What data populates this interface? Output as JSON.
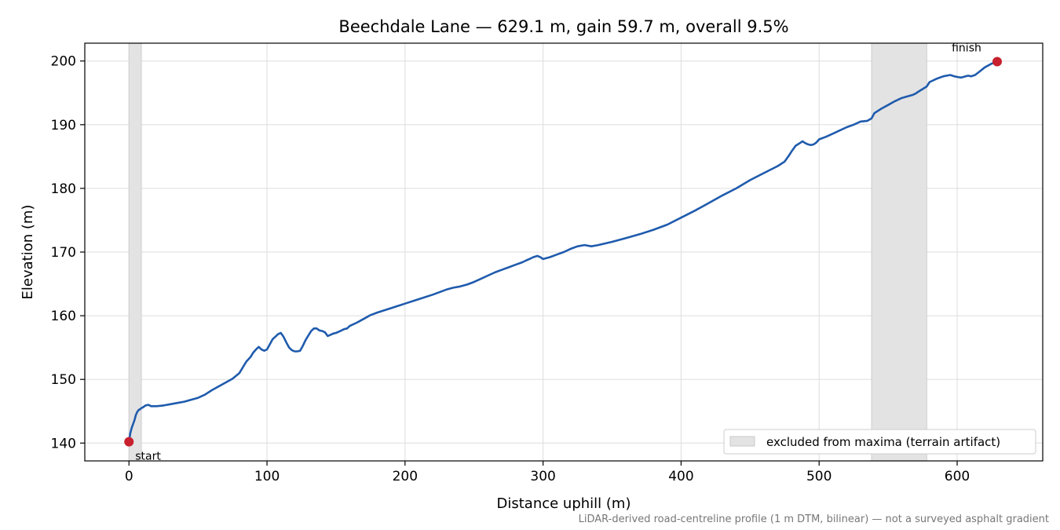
{
  "chart_data": {
    "type": "line",
    "title": "Beechdale Lane — 629.1 m, gain 59.7 m, overall 9.5%",
    "xlabel": "Distance uphill (m)",
    "ylabel": "Elevation (m)",
    "xlim": [
      -32,
      662
    ],
    "ylim": [
      137.2,
      202.8
    ],
    "xticks": [
      0,
      100,
      200,
      300,
      400,
      500,
      600
    ],
    "yticks": [
      140,
      150,
      160,
      170,
      180,
      190,
      200
    ],
    "grid": true,
    "series": [
      {
        "color": "#1f5bad",
        "x": [
          0,
          1,
          2,
          3,
          4,
          5,
          6,
          7,
          8,
          9,
          10,
          12,
          14,
          16,
          20,
          25,
          30,
          35,
          40,
          45,
          50,
          55,
          60,
          65,
          70,
          75,
          80,
          85,
          88,
          90,
          92,
          94,
          96,
          98,
          100,
          102,
          104,
          106,
          108,
          110,
          112,
          114,
          116,
          118,
          120,
          122,
          124,
          126,
          128,
          130,
          132,
          134,
          136,
          138,
          140,
          142,
          144,
          146,
          148,
          150,
          152,
          154,
          156,
          158,
          160,
          165,
          170,
          175,
          180,
          190,
          200,
          210,
          220,
          230,
          235,
          240,
          245,
          250,
          255,
          260,
          265,
          270,
          275,
          280,
          285,
          288,
          290,
          293,
          296,
          298,
          300,
          305,
          310,
          315,
          320,
          325,
          330,
          335,
          340,
          350,
          360,
          370,
          380,
          390,
          400,
          410,
          420,
          430,
          440,
          450,
          460,
          470,
          475,
          478,
          480,
          483,
          486,
          488,
          490,
          492,
          494,
          496,
          498,
          500,
          505,
          510,
          515,
          520,
          525,
          530,
          535,
          538,
          540,
          545,
          550,
          555,
          560,
          565,
          568,
          570,
          572,
          575,
          578,
          580,
          585,
          590,
          595,
          598,
          600,
          603,
          606,
          608,
          610,
          613,
          616,
          620,
          625,
          629
        ],
        "y": [
          140.2,
          141.6,
          142.4,
          143.0,
          143.6,
          144.4,
          144.9,
          145.2,
          145.3,
          145.5,
          145.6,
          145.9,
          146.0,
          145.8,
          145.8,
          145.9,
          146.1,
          146.3,
          146.5,
          146.8,
          147.1,
          147.6,
          148.3,
          148.9,
          149.5,
          150.1,
          151.0,
          152.8,
          153.5,
          154.2,
          154.7,
          155.1,
          154.7,
          154.5,
          154.7,
          155.5,
          156.3,
          156.7,
          157.1,
          157.3,
          156.7,
          155.8,
          155.0,
          154.6,
          154.4,
          154.4,
          154.5,
          155.3,
          156.2,
          156.9,
          157.6,
          158.0,
          158.0,
          157.7,
          157.6,
          157.4,
          156.8,
          157.0,
          157.2,
          157.3,
          157.5,
          157.7,
          157.9,
          158.0,
          158.4,
          158.9,
          159.5,
          160.1,
          160.5,
          161.2,
          161.9,
          162.6,
          163.3,
          164.1,
          164.4,
          164.6,
          164.9,
          165.3,
          165.8,
          166.3,
          166.8,
          167.2,
          167.6,
          168.0,
          168.4,
          168.7,
          168.9,
          169.2,
          169.4,
          169.2,
          168.9,
          169.2,
          169.6,
          170.0,
          170.5,
          170.9,
          171.1,
          170.9,
          171.1,
          171.6,
          172.2,
          172.8,
          173.5,
          174.3,
          175.4,
          176.5,
          177.7,
          178.9,
          180.0,
          181.3,
          182.4,
          183.5,
          184.2,
          185.1,
          185.8,
          186.7,
          187.1,
          187.4,
          187.1,
          186.9,
          186.8,
          186.9,
          187.2,
          187.7,
          188.1,
          188.6,
          189.1,
          189.6,
          190.0,
          190.5,
          190.6,
          191.0,
          191.8,
          192.5,
          193.1,
          193.7,
          194.2,
          194.5,
          194.7,
          194.9,
          195.2,
          195.6,
          196.0,
          196.7,
          197.2,
          197.6,
          197.8,
          197.6,
          197.5,
          197.4,
          197.6,
          197.7,
          197.6,
          197.8,
          198.3,
          199.0,
          199.6,
          199.9
        ]
      }
    ],
    "start_point": {
      "x": 0,
      "y": 140.2,
      "label": "start"
    },
    "finish_point": {
      "x": 629,
      "y": 199.9,
      "label": "finish"
    },
    "marker_color": "#c8202e",
    "excluded_spans": [
      [
        0,
        9
      ],
      [
        538,
        578
      ]
    ],
    "excluded_color": "#e3e3e3",
    "legend": {
      "placement": "lower-right",
      "entries": [
        "excluded from maxima (terrain artifact)"
      ]
    }
  },
  "footnote": "LiDAR-derived road-centreline profile (1 m DTM, bilinear) — not a surveyed asphalt gradient"
}
